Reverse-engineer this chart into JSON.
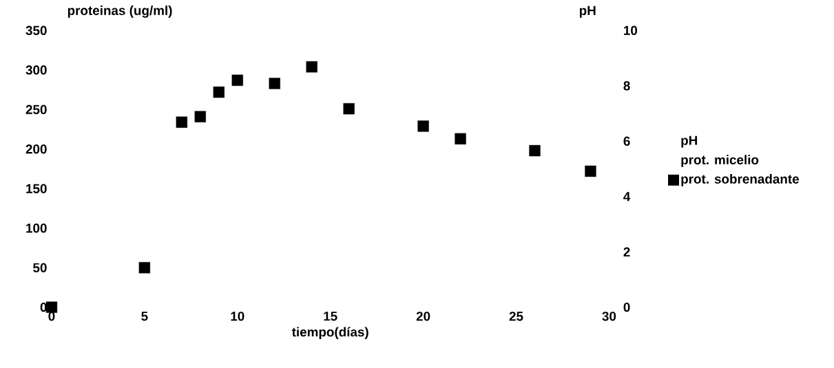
{
  "chart_data": {
    "type": "scatter",
    "xlabel": "tiempo(días)",
    "ylabel": "proteinas (ug/ml)",
    "y2label": "pH",
    "xlim": [
      0,
      30
    ],
    "xticks": [
      0,
      5,
      10,
      15,
      20,
      25,
      30
    ],
    "ylim": [
      0,
      350
    ],
    "yticks": [
      0,
      50,
      100,
      150,
      200,
      250,
      300,
      350
    ],
    "y2lim": [
      0,
      10
    ],
    "y2ticks": [
      0,
      2,
      4,
      6,
      8,
      10
    ],
    "marker": "square",
    "grid": false,
    "legend": "right",
    "series": [
      {
        "name": "prot. sobrenadante",
        "color": "#000000",
        "x": [
          0,
          5,
          7,
          8,
          9,
          10,
          12,
          14,
          16,
          20,
          22,
          26,
          29
        ],
        "values": [
          0,
          50,
          234,
          241,
          272,
          287,
          283,
          304,
          251,
          229,
          213,
          198,
          172
        ]
      }
    ],
    "annotations": [
      "pH",
      "prot. micelio"
    ]
  }
}
